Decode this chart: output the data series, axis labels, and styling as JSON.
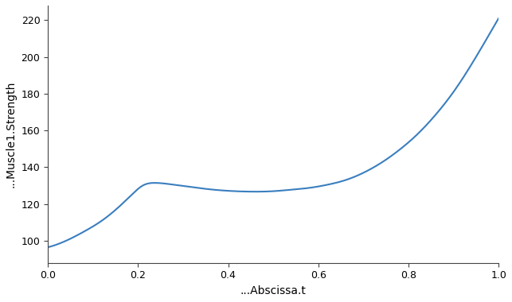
{
  "xlabel": "...Abscissa.t",
  "ylabel": "...Muscle1.Strength",
  "x_min": 0.0,
  "x_max": 1.0,
  "y_min": 88,
  "y_max": 228,
  "line_color": "#3a7ebf",
  "line_width": 1.5,
  "background_color": "#ffffff",
  "xticks": [
    0.0,
    0.2,
    0.4,
    0.6,
    0.8,
    1.0
  ],
  "yticks": [
    100,
    120,
    140,
    160,
    180,
    200,
    220
  ],
  "xlabel_fontsize": 10,
  "ylabel_fontsize": 10,
  "tick_fontsize": 9,
  "spine_color": "#444444",
  "control_points_x": [
    0.0,
    0.04,
    0.08,
    0.12,
    0.16,
    0.19,
    0.21,
    0.24,
    0.28,
    0.32,
    0.36,
    0.4,
    0.44,
    0.48,
    0.5,
    0.54,
    0.58,
    0.62,
    0.66,
    0.7,
    0.74,
    0.78,
    0.82,
    0.86,
    0.9,
    0.94,
    1.0
  ],
  "control_points_y": [
    96.5,
    100,
    105,
    111,
    119,
    126,
    130,
    131.5,
    130.5,
    129.2,
    128.0,
    127.2,
    126.8,
    126.8,
    127.0,
    127.8,
    128.8,
    130.5,
    133.0,
    137.0,
    142.5,
    149.5,
    158.0,
    168.5,
    181.0,
    196.0,
    221.0
  ]
}
